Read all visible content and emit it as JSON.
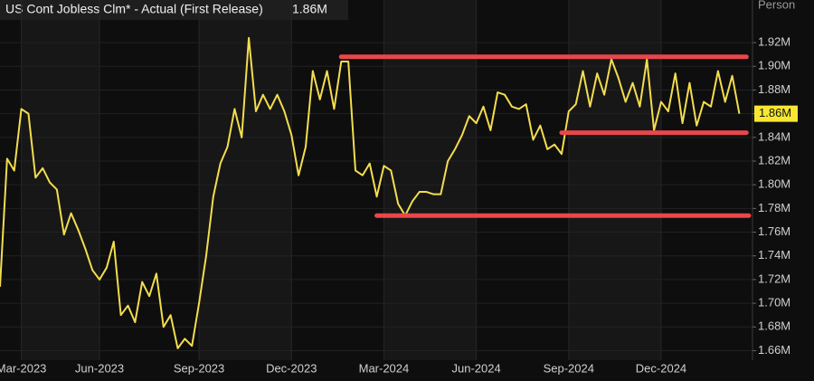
{
  "chart_data": {
    "type": "line",
    "title": "US Cont Jobless Clm* - Actual (First Release)",
    "header_value": "1.86M",
    "y_axis_label": "Person",
    "categories": [
      null,
      null,
      null,
      "Mar-2023",
      null,
      null,
      null,
      null,
      null,
      null,
      null,
      null,
      null,
      null,
      "Jun-2023",
      null,
      null,
      null,
      null,
      null,
      null,
      null,
      null,
      null,
      null,
      null,
      null,
      null,
      "Sep-2023",
      null,
      null,
      null,
      null,
      null,
      null,
      null,
      null,
      null,
      null,
      null,
      null,
      "Dec-2023",
      null,
      null,
      null,
      null,
      null,
      null,
      null,
      null,
      null,
      null,
      null,
      null,
      "Mar-2024",
      null,
      null,
      null,
      null,
      null,
      null,
      null,
      null,
      null,
      null,
      null,
      null,
      "Jun-2024",
      null,
      null,
      null,
      null,
      null,
      null,
      null,
      null,
      null,
      null,
      null,
      null,
      "Sep-2024",
      null,
      null,
      null,
      null,
      null,
      null,
      null,
      null,
      null,
      null,
      null,
      null,
      "Dec-2024",
      null,
      null,
      null,
      null,
      null,
      null,
      null,
      null,
      null,
      null,
      null
    ],
    "series": [
      {
        "name": "US Cont Jobless Clm* - Actual (First Release)",
        "color": "#f3dd4e",
        "values": [
          1.714,
          1.822,
          1.812,
          1.864,
          1.86,
          1.806,
          1.814,
          1.802,
          1.796,
          1.758,
          1.776,
          1.762,
          1.746,
          1.728,
          1.72,
          1.73,
          1.752,
          1.69,
          1.698,
          1.684,
          1.718,
          1.706,
          1.725,
          1.68,
          1.69,
          1.662,
          1.67,
          1.664,
          1.7,
          1.74,
          1.79,
          1.818,
          1.832,
          1.864,
          1.84,
          1.924,
          1.862,
          1.876,
          1.864,
          1.876,
          1.862,
          1.842,
          1.808,
          1.832,
          1.896,
          1.872,
          1.896,
          1.864,
          1.904,
          1.904,
          1.812,
          1.808,
          1.818,
          1.79,
          1.816,
          1.812,
          1.784,
          1.774,
          1.786,
          1.794,
          1.794,
          1.792,
          1.792,
          1.82,
          1.83,
          1.842,
          1.858,
          1.852,
          1.866,
          1.846,
          1.878,
          1.876,
          1.866,
          1.864,
          1.868,
          1.838,
          1.85,
          1.83,
          1.834,
          1.826,
          1.862,
          1.868,
          1.896,
          1.866,
          1.894,
          1.876,
          1.906,
          1.89,
          1.87,
          1.886,
          1.866,
          1.906,
          1.846,
          1.87,
          1.862,
          1.894,
          1.852,
          1.886,
          1.85,
          1.87,
          1.866,
          1.896,
          1.87,
          1.892,
          1.86
        ]
      }
    ],
    "ylim": [
      1.655,
      1.93
    ],
    "yticks": [
      {
        "value": 1.66,
        "label": "1.66M"
      },
      {
        "value": 1.68,
        "label": "1.68M"
      },
      {
        "value": 1.7,
        "label": "1.70M"
      },
      {
        "value": 1.72,
        "label": "1.72M"
      },
      {
        "value": 1.74,
        "label": "1.74M"
      },
      {
        "value": 1.76,
        "label": "1.76M"
      },
      {
        "value": 1.78,
        "label": "1.78M"
      },
      {
        "value": 1.8,
        "label": "1.80M"
      },
      {
        "value": 1.82,
        "label": "1.82M"
      },
      {
        "value": 1.84,
        "label": "1.84M"
      },
      {
        "value": 1.86,
        "label": "1.86M"
      },
      {
        "value": 1.88,
        "label": "1.88M"
      },
      {
        "value": 1.9,
        "label": "1.90M"
      },
      {
        "value": 1.92,
        "label": "1.92M"
      }
    ],
    "last_value": {
      "value": 1.86,
      "label": "1.86M"
    },
    "reference_lines": [
      {
        "value": 1.908,
        "start": 48,
        "end": 105,
        "color": "#e8474c"
      },
      {
        "value": 1.844,
        "start": 79,
        "end": 105,
        "color": "#e8474c"
      },
      {
        "value": 1.774,
        "start": 53,
        "end": 107,
        "color": "#e8474c"
      }
    ],
    "grid": true
  }
}
